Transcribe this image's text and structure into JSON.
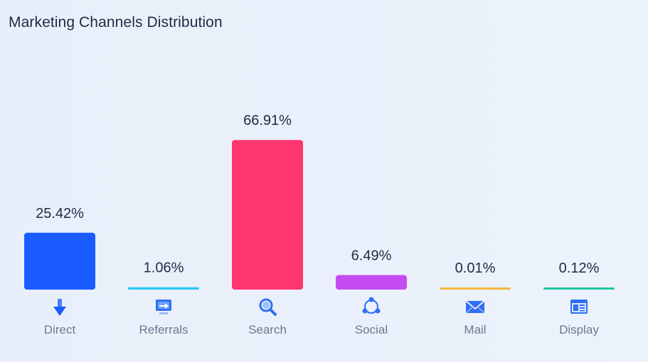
{
  "title": "Marketing Channels Distribution",
  "chart_data": {
    "type": "bar",
    "categories": [
      "Direct",
      "Referrals",
      "Search",
      "Social",
      "Mail",
      "Display"
    ],
    "values": [
      25.42,
      1.06,
      66.91,
      6.49,
      0.01,
      0.12
    ],
    "value_labels": [
      "25.42%",
      "1.06%",
      "66.91%",
      "6.49%",
      "0.01%",
      "0.12%"
    ],
    "colors": [
      "#1a5cff",
      "#2fc7f2",
      "#ff3570",
      "#c44bf2",
      "#f5b53b",
      "#1fc7a0"
    ],
    "icons": [
      "download-arrow-icon",
      "referral-monitor-icon",
      "search-magnifier-icon",
      "social-share-icon",
      "mail-envelope-icon",
      "display-browser-icon"
    ],
    "title": "Marketing Channels Distribution",
    "xlabel": "",
    "ylabel": "",
    "ylim": [
      0,
      100
    ],
    "grid": false,
    "legend": "none"
  }
}
